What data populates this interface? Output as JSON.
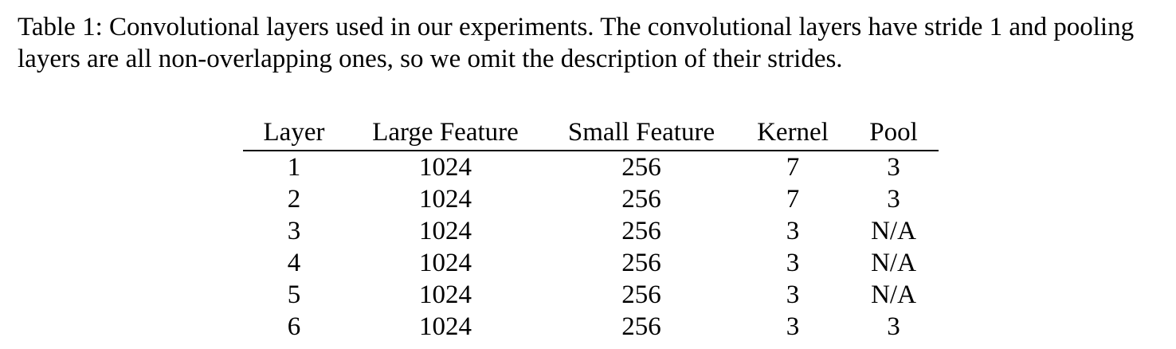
{
  "caption": "Table 1: Convolutional layers used in our experiments. The convolutional layers have stride 1 and pooling layers are all non-overlapping ones, so we omit the description of their strides.",
  "table": {
    "headers": [
      "Layer",
      "Large Feature",
      "Small Feature",
      "Kernel",
      "Pool"
    ],
    "rows": [
      [
        "1",
        "1024",
        "256",
        "7",
        "3"
      ],
      [
        "2",
        "1024",
        "256",
        "7",
        "3"
      ],
      [
        "3",
        "1024",
        "256",
        "3",
        "N/A"
      ],
      [
        "4",
        "1024",
        "256",
        "3",
        "N/A"
      ],
      [
        "5",
        "1024",
        "256",
        "3",
        "N/A"
      ],
      [
        "6",
        "1024",
        "256",
        "3",
        "3"
      ]
    ]
  }
}
